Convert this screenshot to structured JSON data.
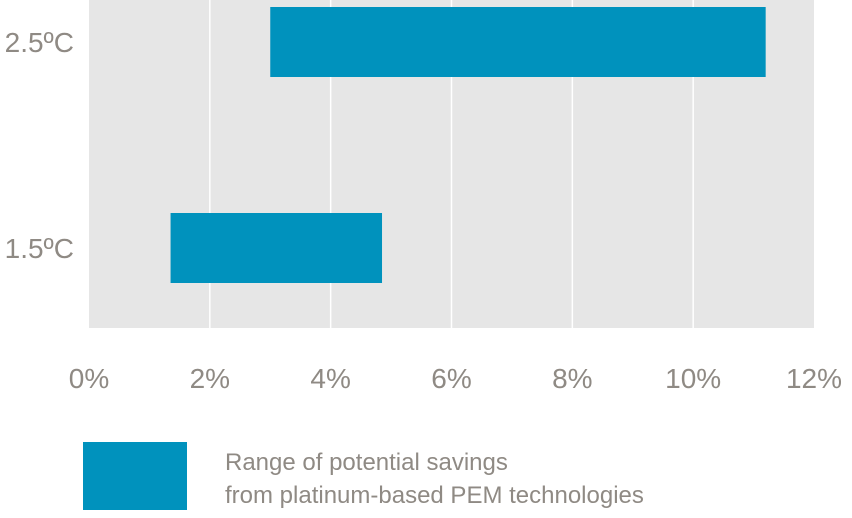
{
  "chart_data": {
    "type": "bar",
    "orientation": "horizontal",
    "style": "range",
    "categories": [
      "2.5ºC",
      "1.5ºC"
    ],
    "ranges": [
      [
        3.0,
        11.2
      ],
      [
        1.35,
        4.85
      ]
    ],
    "x_ticks": [
      "0%",
      "2%",
      "4%",
      "6%",
      "8%",
      "10%",
      "12%"
    ],
    "xlim": [
      0,
      12
    ],
    "grid": true,
    "legend_position": "bottom-left",
    "legend": [
      "Range of potential savings",
      "from platinum-based PEM technologies"
    ],
    "colors": {
      "bar": "#0092bd",
      "plot_background": "#e6e6e6",
      "gridline": "#ffffff",
      "text": "#8f8a84"
    }
  }
}
